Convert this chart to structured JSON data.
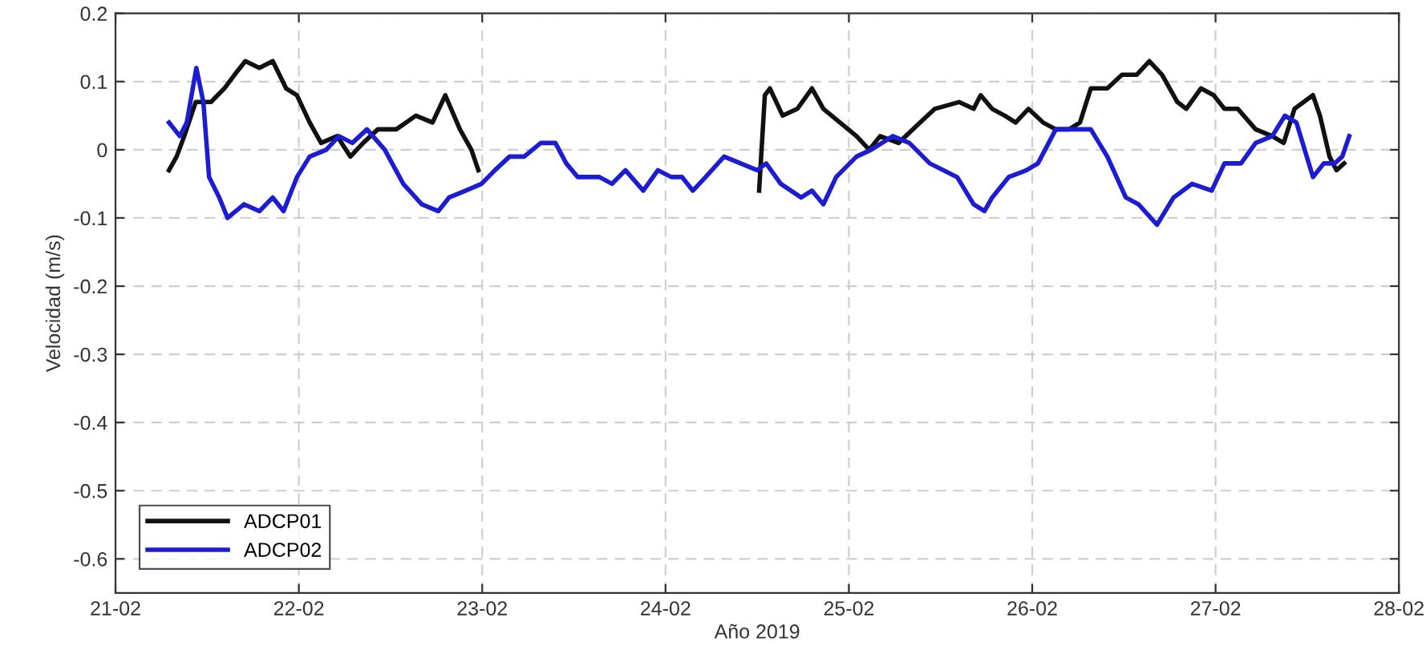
{
  "chart_data": {
    "type": "line",
    "xlabel": "Año 2019",
    "ylabel": "Velocidad (m/s)",
    "xlim": [
      "2019-02-21",
      "2019-02-28"
    ],
    "xticks": [
      {
        "value": "2019-02-21",
        "label": "21-02"
      },
      {
        "value": "2019-02-22",
        "label": "22-02"
      },
      {
        "value": "2019-02-23",
        "label": "23-02"
      },
      {
        "value": "2019-02-24",
        "label": "24-02"
      },
      {
        "value": "2019-02-25",
        "label": "25-02"
      },
      {
        "value": "2019-02-26",
        "label": "26-02"
      },
      {
        "value": "2019-02-27",
        "label": "27-02"
      },
      {
        "value": "2019-02-28",
        "label": "28-02"
      }
    ],
    "ylim": [
      -0.65,
      0.2
    ],
    "yticks": [
      -0.6,
      -0.5,
      -0.4,
      -0.3,
      -0.2,
      -0.1,
      0,
      0.1,
      0.2
    ],
    "grid": true,
    "legend": "bottom left",
    "line_style": "solid",
    "marker": "none",
    "series": [
      {
        "name": "ADCP01",
        "color": "#111111",
        "x": [
          "2019-02-21T07:00",
          "2019-02-21T08:00",
          "2019-02-21T09:00",
          "2019-02-21T10:30",
          "2019-02-21T12:30",
          "2019-02-21T14:15",
          "2019-02-21T15:35",
          "2019-02-21T17:00",
          "2019-02-21T18:50",
          "2019-02-21T20:35",
          "2019-02-21T22:20",
          "2019-02-21T23:45",
          "2019-02-22T01:25",
          "2019-02-22T02:55",
          "2019-02-22T05:00",
          "2019-02-22T06:45",
          "2019-02-22T08:25",
          "2019-02-22T10:20",
          "2019-02-22T12:45",
          "2019-02-22T15:20",
          "2019-02-22T17:30",
          "2019-02-22T19:10",
          "2019-02-22T21:05",
          "2019-02-22T22:35",
          "2019-02-22T23:30",
          "2019-02-23T12:00",
          "2019-02-24T12:15",
          "2019-02-24T13:00",
          "2019-02-24T13:40",
          "2019-02-24T15:20",
          "2019-02-24T17:15",
          "2019-02-24T19:10",
          "2019-02-24T20:40",
          "2019-02-24T22:50",
          "2019-02-25T01:00",
          "2019-02-25T02:40",
          "2019-02-25T04:05",
          "2019-02-25T06:30",
          "2019-02-25T09:20",
          "2019-02-25T11:15",
          "2019-02-25T14:25",
          "2019-02-25T16:20",
          "2019-02-25T17:15",
          "2019-02-25T18:45",
          "2019-02-25T20:25",
          "2019-02-25T21:50",
          "2019-02-25T23:30",
          "2019-02-26T01:25",
          "2019-02-26T03:05",
          "2019-02-26T04:50",
          "2019-02-26T06:15",
          "2019-02-26T07:40",
          "2019-02-26T09:50",
          "2019-02-26T11:45",
          "2019-02-26T13:40",
          "2019-02-26T15:20",
          "2019-02-26T17:00",
          "2019-02-26T19:00",
          "2019-02-26T20:10",
          "2019-02-26T22:05",
          "2019-02-26T23:45",
          "2019-02-27T01:10",
          "2019-02-27T02:55",
          "2019-02-27T05:15",
          "2019-02-27T07:25",
          "2019-02-27T08:55",
          "2019-02-27T10:20",
          "2019-02-27T12:45",
          "2019-02-27T13:40",
          "2019-02-27T14:55",
          "2019-02-27T15:50",
          "2019-02-27T16:50"
        ],
        "values": [
          -0.03,
          -0.01,
          0.02,
          0.07,
          0.07,
          0.09,
          0.11,
          0.13,
          0.12,
          0.13,
          0.09,
          0.08,
          0.04,
          0.01,
          0.02,
          -0.01,
          0.01,
          0.03,
          0.03,
          0.05,
          0.04,
          0.08,
          0.03,
          0.0,
          -0.03,
          null,
          -0.06,
          0.08,
          0.09,
          0.05,
          0.06,
          0.09,
          0.06,
          0.04,
          0.02,
          0.0,
          0.02,
          0.01,
          0.04,
          0.06,
          0.07,
          0.06,
          0.08,
          0.06,
          0.05,
          0.04,
          0.06,
          0.04,
          0.03,
          0.03,
          0.04,
          0.09,
          0.09,
          0.11,
          0.11,
          0.13,
          0.11,
          0.07,
          0.06,
          0.09,
          0.08,
          0.06,
          0.06,
          0.03,
          0.02,
          0.01,
          0.06,
          0.08,
          0.05,
          -0.01,
          -0.03,
          -0.02
        ]
      },
      {
        "name": "ADCP02",
        "color": "#1c1cd2",
        "x": [
          "2019-02-21T07:00",
          "2019-02-21T08:25",
          "2019-02-21T09:20",
          "2019-02-21T10:35",
          "2019-02-21T11:30",
          "2019-02-21T12:15",
          "2019-02-21T13:35",
          "2019-02-21T14:40",
          "2019-02-21T16:50",
          "2019-02-21T18:50",
          "2019-02-21T20:35",
          "2019-02-21T22:00",
          "2019-02-21T23:45",
          "2019-02-22T01:25",
          "2019-02-22T03:35",
          "2019-02-22T05:15",
          "2019-02-22T07:00",
          "2019-02-22T08:55",
          "2019-02-22T11:15",
          "2019-02-22T13:40",
          "2019-02-22T16:05",
          "2019-02-22T18:15",
          "2019-02-22T19:40",
          "2019-02-22T21:50",
          "2019-02-22T23:55",
          "2019-02-23T01:40",
          "2019-02-23T03:35",
          "2019-02-23T05:30",
          "2019-02-23T07:40",
          "2019-02-23T09:35",
          "2019-02-23T11:00",
          "2019-02-23T12:30",
          "2019-02-23T15:20",
          "2019-02-23T17:00",
          "2019-02-23T18:45",
          "2019-02-23T21:05",
          "2019-02-23T23:00",
          "2019-02-24T00:45",
          "2019-02-24T02:10",
          "2019-02-24T03:35",
          "2019-02-24T05:15",
          "2019-02-24T07:40",
          "2019-02-24T09:50",
          "2019-02-24T12:00",
          "2019-02-24T13:10",
          "2019-02-24T15:05",
          "2019-02-24T17:45",
          "2019-02-24T19:10",
          "2019-02-24T20:40",
          "2019-02-24T22:20",
          "2019-02-25T01:00",
          "2019-02-25T02:55",
          "2019-02-25T05:45",
          "2019-02-25T07:55",
          "2019-02-25T10:35",
          "2019-02-25T14:10",
          "2019-02-25T16:20",
          "2019-02-25T17:45",
          "2019-02-25T18:45",
          "2019-02-25T20:55",
          "2019-02-25T23:15",
          "2019-02-26T00:45",
          "2019-02-26T03:05",
          "2019-02-26T05:30",
          "2019-02-26T07:40",
          "2019-02-26T09:50",
          "2019-02-26T12:15",
          "2019-02-26T13:55",
          "2019-02-26T16:20",
          "2019-02-26T18:30",
          "2019-02-26T20:55",
          "2019-02-26T23:30",
          "2019-02-27T01:10",
          "2019-02-27T03:20",
          "2019-02-27T05:15",
          "2019-02-27T07:25",
          "2019-02-27T09:05",
          "2019-02-27T10:35",
          "2019-02-27T12:45",
          "2019-02-27T14:10",
          "2019-02-27T15:35",
          "2019-02-27T16:35",
          "2019-02-27T17:30"
        ],
        "values": [
          0.04,
          0.02,
          0.04,
          0.12,
          0.07,
          -0.04,
          -0.07,
          -0.1,
          -0.08,
          -0.09,
          -0.07,
          -0.09,
          -0.04,
          -0.01,
          0.0,
          0.02,
          0.01,
          0.03,
          0.0,
          -0.05,
          -0.08,
          -0.09,
          -0.07,
          -0.06,
          -0.05,
          -0.03,
          -0.01,
          -0.01,
          0.01,
          0.01,
          -0.02,
          -0.04,
          -0.04,
          -0.05,
          -0.03,
          -0.06,
          -0.03,
          -0.04,
          -0.04,
          -0.06,
          -0.04,
          -0.01,
          -0.02,
          -0.03,
          -0.02,
          -0.05,
          -0.07,
          -0.06,
          -0.08,
          -0.04,
          -0.01,
          0.0,
          0.02,
          0.01,
          -0.02,
          -0.04,
          -0.08,
          -0.09,
          -0.07,
          -0.04,
          -0.03,
          -0.02,
          0.03,
          0.03,
          0.03,
          -0.01,
          -0.07,
          -0.08,
          -0.11,
          -0.07,
          -0.05,
          -0.06,
          -0.02,
          -0.02,
          0.01,
          0.02,
          0.05,
          0.04,
          -0.04,
          -0.02,
          -0.02,
          -0.01,
          0.02
        ]
      }
    ]
  }
}
